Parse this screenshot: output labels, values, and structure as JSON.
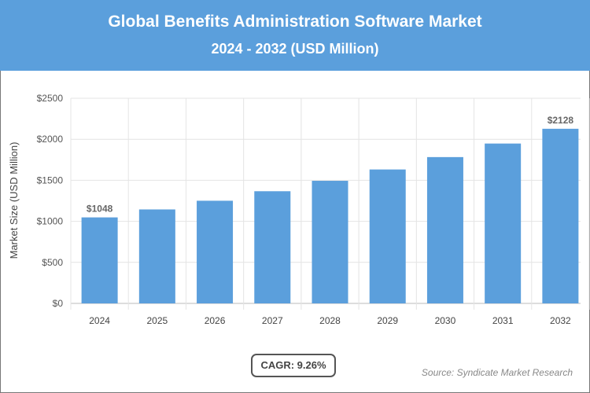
{
  "header": {
    "title": "Global Benefits Administration Software Market",
    "subtitle": "2024 - 2032 (USD Million)",
    "color": "#5b9fdc"
  },
  "chart_data": {
    "type": "bar",
    "categories": [
      "2024",
      "2025",
      "2026",
      "2027",
      "2028",
      "2029",
      "2030",
      "2031",
      "2032"
    ],
    "values": [
      1048,
      1145,
      1251,
      1367,
      1494,
      1632,
      1783,
      1948,
      2128
    ],
    "data_labels": {
      "0": "$1048",
      "8": "$2128"
    },
    "ylabel": "Market Size (USD Million)",
    "ylim": [
      0,
      2500
    ],
    "yticks": [
      0,
      500,
      1000,
      1500,
      2000,
      2500
    ],
    "ytick_labels": [
      "$0",
      "$500",
      "$1000",
      "$1500",
      "$2000",
      "$2500"
    ],
    "grid": true,
    "bar_color": "#5b9fdc"
  },
  "cagr": "CAGR: 9.26%",
  "source": "Source: Syndicate Market Research"
}
